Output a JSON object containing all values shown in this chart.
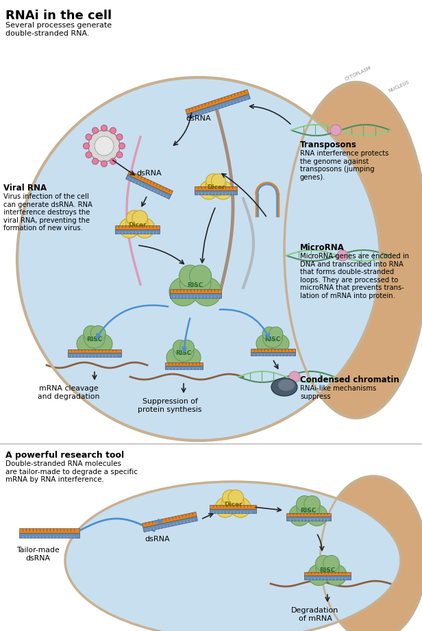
{
  "title": "RNAi in the cell",
  "subtitle": "Several processes generate\ndouble-stranded RNA.",
  "bg_color": "#ffffff",
  "section2_title": "A powerful research tool",
  "section2_subtitle": "Double-stranded RNA molecules\nare tailor-made to degrade a specific\nmRNA by RNA interference.",
  "annotations": {
    "viral_rna_title": "Viral RNA",
    "viral_rna_text": "Virus infection of the cell\ncan generate dsRNA. RNA\ninterference destroys the\nviral RNA, preventing the\nformation of new virus.",
    "transposons_title": "Transposons",
    "transposons_text": "RNA interference protects\nthe genome against\ntransposons (jumping\ngenes).",
    "microrna_title": "MicroRNA",
    "microrna_text": "MicroRNA genes are encoded in\nDNA and transcribed into RNA\nthat forms double-stranded\nloops. They are processed to\nmicroRNA that prevents trans-\nlation of mRNA into protein.",
    "condensed_title": "Condensed chromatin",
    "condensed_text": "RNAi-like mechanisms\nsuppress",
    "mrna_cleavage": "mRNA cleavage\nand degradation",
    "suppression": "Suppression of\nprotein synthesis",
    "tailor_dsrna": "Tailor-made\ndsRNA",
    "dsrna_label": "dsRNA",
    "degradation": "Degradation\nof mRNA"
  },
  "colors": {
    "orange": "#E8821A",
    "blue_stripe": "#4a7fb5",
    "green_risc": "#8db87a",
    "yellow_dicer": "#e8d060",
    "pink": "#e89ab0",
    "dark_green_dna": "#4a8a60",
    "arrow": "#222222",
    "text_dark": "#111111",
    "text_bold": "#000000",
    "brown_mrna": "#8B6040",
    "cell_cytoplasm_color": "#c8dff0",
    "nucleus_color": "#d4a87a",
    "cell_border_color": "#c8b090",
    "cytoplasm_label": "CYTOPLASM",
    "nucleus_label": "NUCLEUS"
  }
}
